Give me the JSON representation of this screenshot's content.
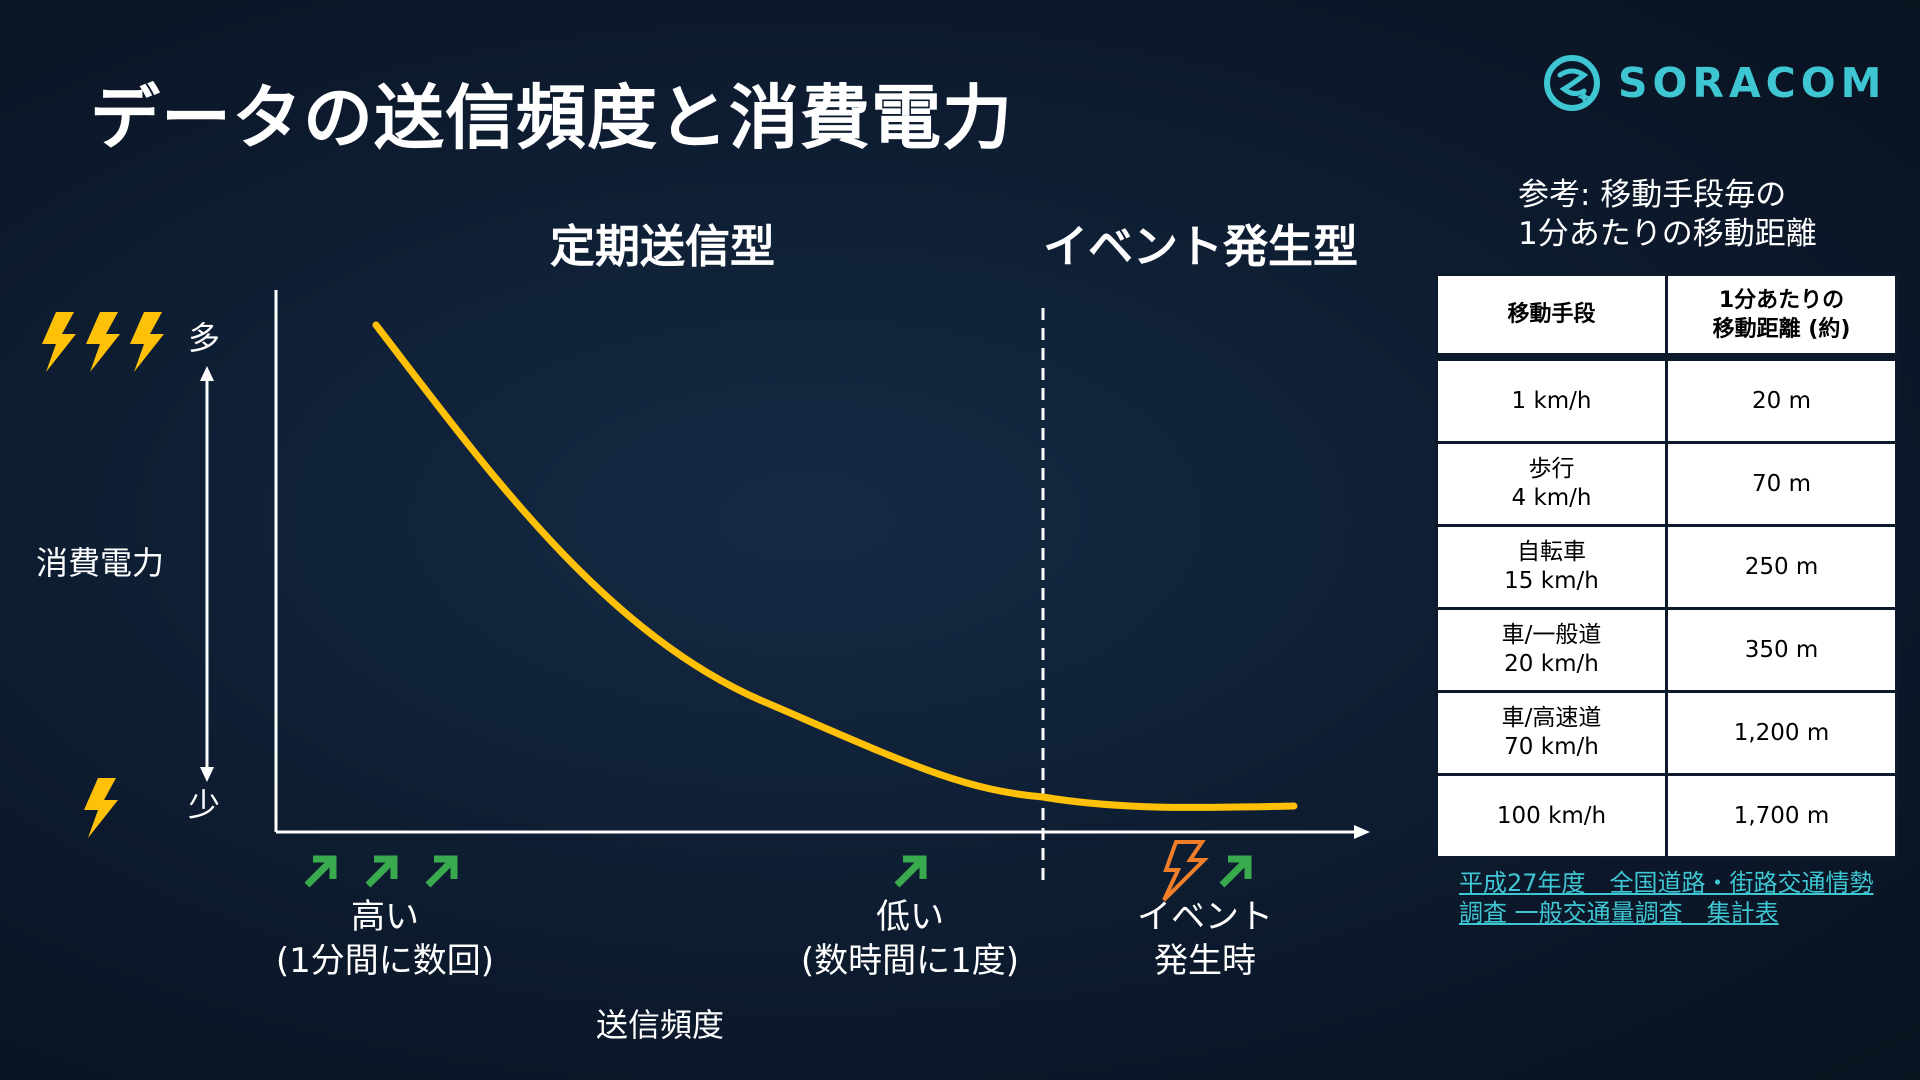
{
  "slide": {
    "title": "データの送信頻度と消費電力",
    "logo_text": "SORACOM",
    "accent_color": "#3fc6d3"
  },
  "regions": {
    "periodic": "定期送信型",
    "event": "イベント発生型"
  },
  "y_axis": {
    "title": "消費電力",
    "high_label": "多",
    "low_label": "少",
    "high_icon": "three-lightning-icons",
    "low_icon": "lightning-icon",
    "icon_color": "#ffc107"
  },
  "x_axis": {
    "title": "送信頻度",
    "labels": [
      {
        "text": "高い\n(1分間に数回)",
        "icons": "three-send-arrow-icons"
      },
      {
        "text": "低い\n(数時間に1度)",
        "icons": "send-arrow-icon"
      },
      {
        "text": "イベント\n発生時",
        "icons": "event-lightning-and-send-arrow-icons"
      }
    ],
    "arrow_icon_color": "#3aaa4e",
    "event_icon_color": "#f07e28"
  },
  "curve": {
    "description_series": "消費電力",
    "color": "#ffc107"
  },
  "reference": {
    "caption": "参考: 移動手段毎の\n1分あたりの移動距離",
    "headers": [
      "移動手段",
      "1分あたりの\n移動距離 (約)"
    ],
    "rows": [
      [
        "1 km/h",
        "20 m"
      ],
      [
        "歩行\n4 km/h",
        "70 m"
      ],
      [
        "自転車\n15 km/h",
        "250 m"
      ],
      [
        "車/一般道\n20 km/h",
        "350 m"
      ],
      [
        "車/高速道\n70 km/h",
        "1,200 m"
      ],
      [
        "100 km/h",
        "1,700 m"
      ]
    ],
    "source": "平成27年度　全国道路・街路交通情勢\n調査 一般交通量調査　集計表"
  }
}
